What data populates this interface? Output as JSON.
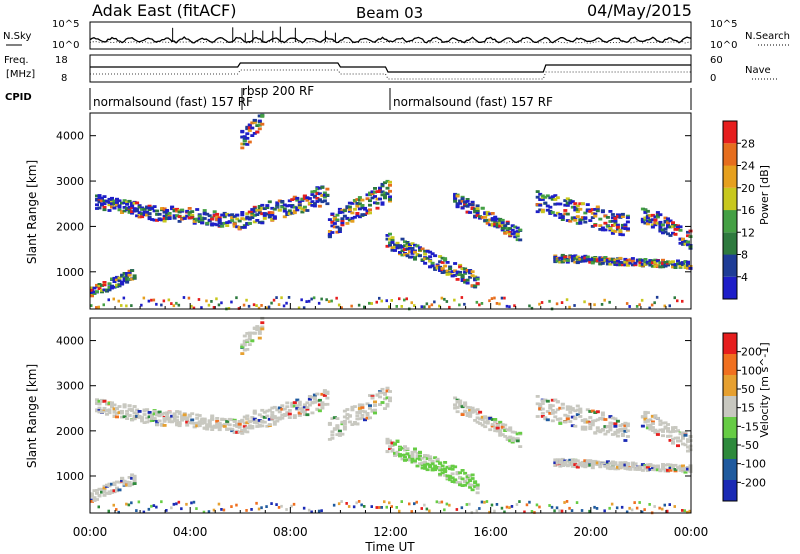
{
  "header": {
    "radar": "Adak East (fitACF)",
    "beam": "Beam 03",
    "date": "04/May/2015"
  },
  "noise_panel": {
    "left_label": "N.Sky",
    "right_label": "N.Search",
    "left_ticks": [
      "10^5",
      "10^0"
    ],
    "right_ticks": [
      "10^5",
      "10^0"
    ]
  },
  "freq_panel": {
    "left_label_top": "Freq.",
    "left_label_bottom": "[MHz]",
    "left_ticks": [
      "18",
      "8"
    ],
    "right_label": "Nave",
    "right_ticks": [
      "60",
      "0"
    ]
  },
  "cpid": {
    "label": "CPID",
    "segments": [
      {
        "text": "normalsound (fast) 157 RF",
        "start_hour": 0,
        "end_hour": 6.0
      },
      {
        "text": "rbsp 200 RF",
        "start_hour": 6.0,
        "end_hour": 11.9
      },
      {
        "text": "normalsound (fast) 157 RF",
        "start_hour": 11.9,
        "end_hour": 24
      }
    ]
  },
  "chart_data": [
    {
      "type": "heatmap",
      "name": "power",
      "ylabel": "Slant Range [km]",
      "colorbar_label": "Power [dB]",
      "colorbar_ticks": [
        "28",
        "24",
        "20",
        "16",
        "12",
        "8",
        "4"
      ],
      "colors": [
        "#1e1ec8",
        "#1e3c96",
        "#2e7a3e",
        "#44a044",
        "#c8c81e",
        "#e6a01e",
        "#e66e1e",
        "#e61e1e"
      ],
      "ylim": [
        180,
        4500
      ],
      "yticks": [
        "4000",
        "3000",
        "2000",
        "1000"
      ],
      "xlim": [
        0,
        24
      ],
      "xticks": [
        "00:00",
        "04:00",
        "08:00",
        "12:00",
        "16:00",
        "20:00",
        "00:00"
      ],
      "xlabel": "Time UT"
    },
    {
      "type": "heatmap",
      "name": "velocity",
      "ylabel": "Slant Range [km]",
      "colorbar_label": "Velocity [m s^-1]",
      "colorbar_ticks": [
        "200",
        "100",
        "50",
        "15",
        "-15",
        "-50",
        "-100",
        "-200"
      ],
      "colors": [
        "#1a2ab4",
        "#1f5a9e",
        "#2e8a3c",
        "#66cc44",
        "#c8c8c0",
        "#e6a030",
        "#f07020",
        "#e61e1e"
      ],
      "ylim": [
        180,
        4500
      ],
      "yticks": [
        "4000",
        "3000",
        "2000",
        "1000"
      ],
      "xlim": [
        0,
        24
      ],
      "xticks": [
        "00:00",
        "04:00",
        "08:00",
        "12:00",
        "16:00",
        "20:00",
        "00:00"
      ],
      "xlabel": "Time UT"
    }
  ]
}
